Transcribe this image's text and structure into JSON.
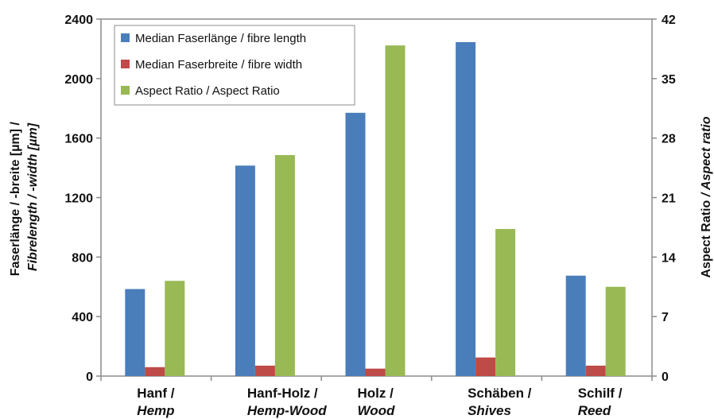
{
  "chart_data": {
    "type": "bar",
    "categories": [
      {
        "line1": "Hanf /",
        "line2": "Hemp"
      },
      {
        "line1": "Hanf-Holz /",
        "line2": "Hemp-Wood"
      },
      {
        "line1": "Holz /",
        "line2": "Wood"
      },
      {
        "line1": "Schäben /",
        "line2": "Shives"
      },
      {
        "line1": "Schilf /",
        "line2": "Reed"
      }
    ],
    "series": [
      {
        "name": "Median Faserlänge / fibre length",
        "axis": "left",
        "color": "#4a7ebb",
        "values": [
          585,
          1415,
          1770,
          2245,
          675
        ]
      },
      {
        "name": "Median Faserbreite / fibre width",
        "axis": "left",
        "color": "#be4b48",
        "values": [
          60,
          70,
          50,
          125,
          70
        ]
      },
      {
        "name": "Aspect Ratio / Aspect Ratio",
        "axis": "right",
        "color": "#98b954",
        "values": [
          11.2,
          26.0,
          38.9,
          17.3,
          10.5
        ]
      }
    ],
    "ylim_left": [
      0,
      2400
    ],
    "yticks_left": [
      0,
      400,
      800,
      1200,
      1600,
      2000,
      2400
    ],
    "ylim_right": [
      0,
      42
    ],
    "yticks_right": [
      0,
      7,
      14,
      21,
      28,
      35,
      42
    ],
    "ylabel_left": {
      "line1": "Faserlänge / -breite [µm] /",
      "line2": "Fibrelength / -width [µm]"
    },
    "ylabel_right": {
      "part1": "Aspect Ratio ",
      "part2": "/ Aspect  ratio"
    },
    "legend_position": "top-left",
    "grid": false
  }
}
